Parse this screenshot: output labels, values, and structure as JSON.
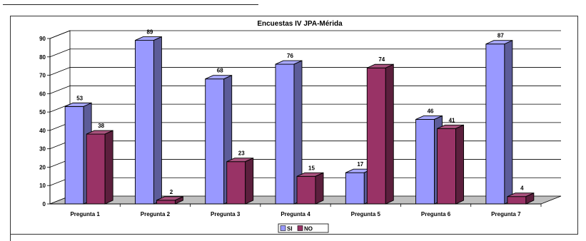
{
  "chart_data": {
    "type": "bar",
    "title": "Encuestas IV JPA-Mérida",
    "categories": [
      "Pregunta 1",
      "Pregunta 2",
      "Pregunta 3",
      "Pregunta 4",
      "Pregunta 5",
      "Pregunta 6",
      "Pregunta 7"
    ],
    "series": [
      {
        "name": "SI",
        "color": "#9999FF",
        "values": [
          53,
          89,
          68,
          76,
          17,
          46,
          87
        ]
      },
      {
        "name": "NO",
        "color": "#993366",
        "values": [
          38,
          2,
          23,
          15,
          74,
          41,
          4
        ]
      }
    ],
    "value_labels": {
      "SI": [
        "53",
        "89",
        "68",
        "76",
        "17",
        "46",
        "87"
      ],
      "NO": [
        "38",
        "2",
        "23",
        "15",
        "74",
        "41",
        "4"
      ]
    },
    "yticks": [
      "0",
      "10",
      "20",
      "30",
      "40",
      "50",
      "60",
      "70",
      "80",
      "90"
    ],
    "ylim": [
      0,
      90
    ],
    "xlabel": "",
    "ylabel": "",
    "grid": true,
    "legend_position": "bottom",
    "style": "3d-bar"
  }
}
